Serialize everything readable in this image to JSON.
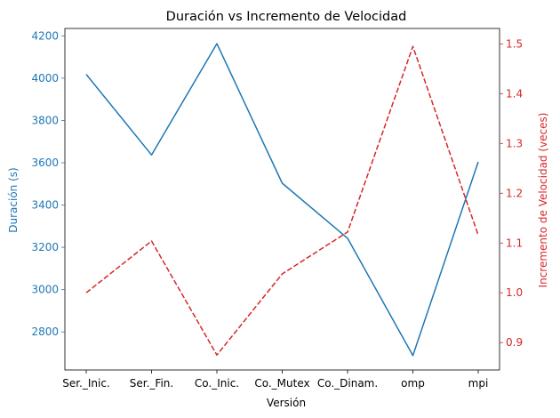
{
  "chart_data": {
    "type": "line",
    "title": "Duración vs Incremento de Velocidad",
    "xlabel": "Versión",
    "categories": [
      "Ser._Inic.",
      "Ser._Fin.",
      "Co._Inic.",
      "Co._Mutex",
      "Co._Dinam.",
      "omp",
      "mpi"
    ],
    "left_axis": {
      "label": "Duración (s)",
      "color": "#1f77b4",
      "ylim": [
        2620,
        4235
      ],
      "ticks": [
        2800,
        3000,
        3200,
        3400,
        3600,
        3800,
        4000,
        4200
      ]
    },
    "right_axis": {
      "label": "Incremento de Velocidad (veces)",
      "color": "#d62728",
      "ylim": [
        0.845,
        1.531
      ],
      "ticks": [
        "0.9",
        "1.0",
        "1.1",
        "1.2",
        "1.3",
        "1.4",
        "1.5"
      ]
    },
    "series": [
      {
        "axis": "left",
        "color": "#1f77b4",
        "style": "solid",
        "values": [
          4018,
          3637,
          4163,
          3503,
          3243,
          2688,
          3604
        ]
      },
      {
        "axis": "right",
        "color": "#d62728",
        "style": "dashed",
        "values": [
          1.0,
          1.104,
          0.875,
          1.038,
          1.122,
          1.495,
          1.116
        ]
      }
    ],
    "grid": false,
    "legend": "none"
  }
}
